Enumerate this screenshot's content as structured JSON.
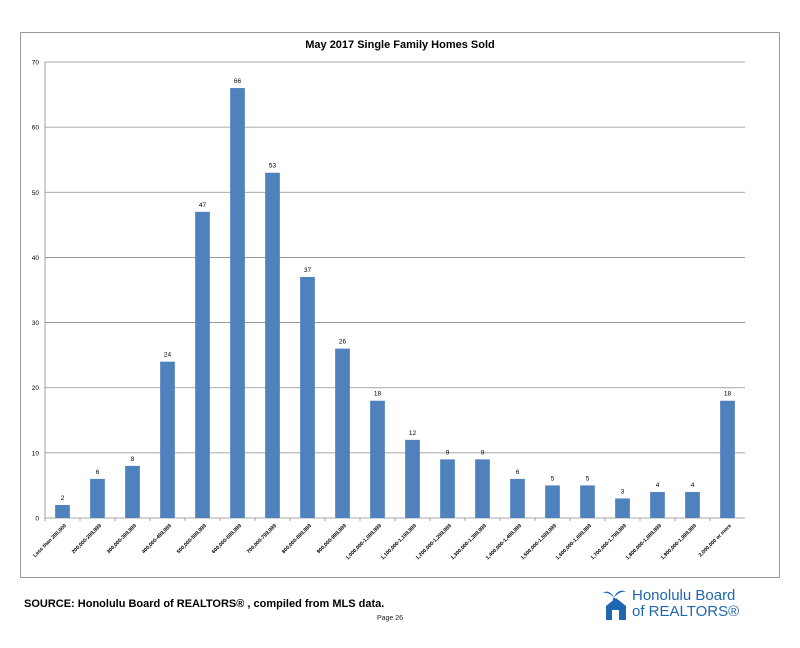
{
  "chart_data": {
    "type": "bar",
    "title": "May 2017 Single Family Homes Sold",
    "xlabel": "",
    "ylabel": "",
    "ylim": [
      0,
      70
    ],
    "yticks": [
      0,
      10,
      20,
      30,
      40,
      50,
      60,
      70
    ],
    "grid": true,
    "legend": "none",
    "bar_color": "#4f81bd",
    "categories": [
      "Less than 200,000",
      "200,000-299,999",
      "300,000-399,999",
      "400,000-499,999",
      "500,000-599,999",
      "600,000-699,999",
      "700,000-799,999",
      "800,000-899,999",
      "900,000-999,999",
      "1,000,000-1,099,999",
      "1,100,000-1,199,999",
      "1,200,000-1,299,999",
      "1,300,000-1,399,999",
      "1,400,000-1,499,999",
      "1,500,000-1,599,999",
      "1,600,000-1,699,999",
      "1,700,000-1,799,999",
      "1,800,000-1,899,999",
      "1,900,000-1,999,999",
      "2,000,000 or more"
    ],
    "values": [
      2,
      6,
      8,
      24,
      47,
      66,
      53,
      37,
      26,
      18,
      12,
      9,
      9,
      6,
      5,
      5,
      3,
      4,
      4,
      18
    ]
  },
  "footer": {
    "source": "SOURCE:  Honolulu Board of REALTORS® , compiled from MLS data.",
    "page": "Page 26"
  },
  "logo": {
    "line1": "Honolulu Board",
    "line2": "of REALTORS®",
    "color": "#1f67b1"
  }
}
